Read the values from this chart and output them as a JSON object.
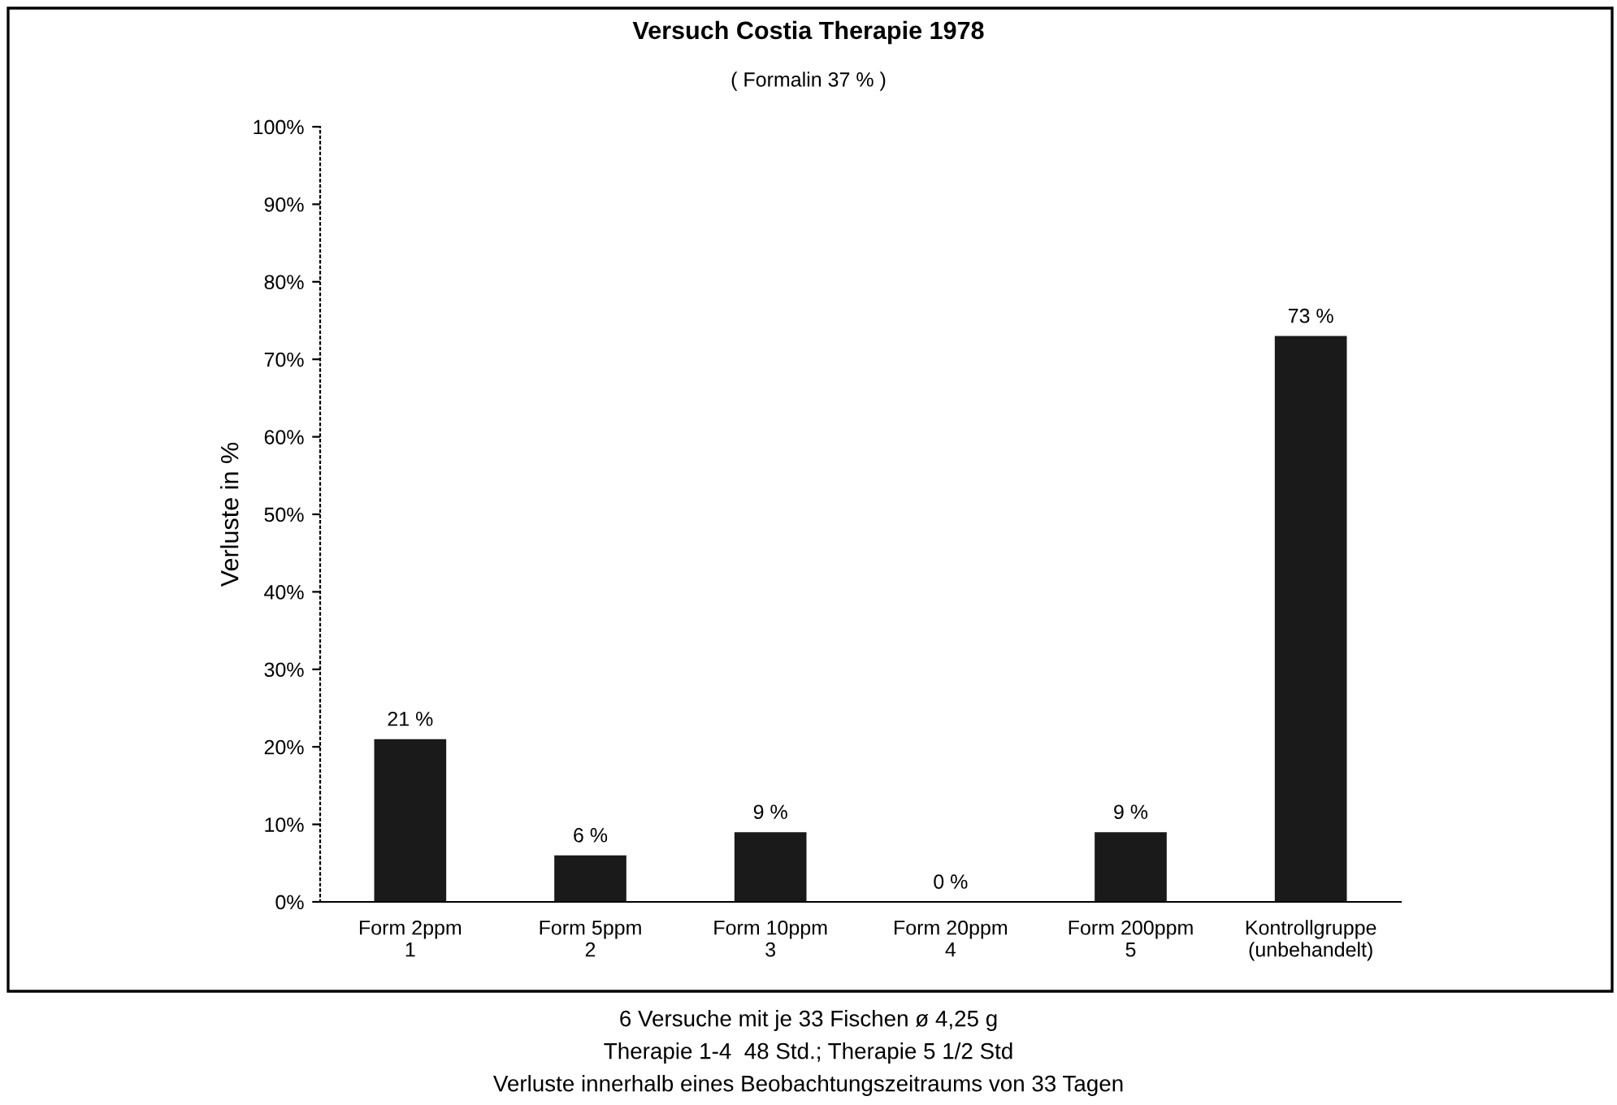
{
  "chart_data": {
    "type": "bar",
    "title": "Versuch Costia Therapie 1978",
    "subtitle": "( Formalin 37 % )",
    "ylabel": "Verluste in %",
    "categories": [
      "Form 2ppm\n1",
      "Form 5ppm\n2",
      "Form 10ppm\n3",
      "Form 20ppm\n4",
      "Form 200ppm\n5",
      "Kontrollgruppe\n(unbehandelt)"
    ],
    "values": [
      21,
      6,
      9,
      0,
      9,
      73
    ],
    "value_labels": [
      "21 %",
      "6 %",
      "9 %",
      "0 %",
      "9 %",
      "73 %"
    ],
    "color": "#1a1a1a",
    "ylim": [
      0,
      100
    ],
    "yticks": [
      {
        "value": 0,
        "label": "0%"
      },
      {
        "value": 10,
        "label": "10%"
      },
      {
        "value": 20,
        "label": "20%"
      },
      {
        "value": 30,
        "label": "30%"
      },
      {
        "value": 40,
        "label": "40%"
      },
      {
        "value": 50,
        "label": "50%"
      },
      {
        "value": 60,
        "label": "60%"
      },
      {
        "value": 70,
        "label": "70%"
      },
      {
        "value": 80,
        "label": "80%"
      },
      {
        "value": 90,
        "label": "90%"
      },
      {
        "value": 100,
        "label": "100%"
      }
    ],
    "grid": false,
    "legend": false,
    "annotations": [
      "6 Versuche mit je 33 Fischen ø 4,25 g",
      "Therapie 1-4  48 Std.; Therapie 5 1/2 Std",
      "Verluste innerhalb eines Beobachtungszeitraums von 33 Tagen"
    ]
  }
}
